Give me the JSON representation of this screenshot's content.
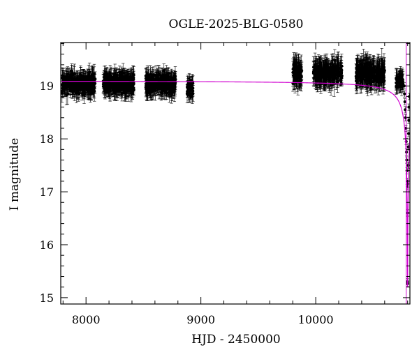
{
  "chart_data": {
    "type": "scatter",
    "title": "OGLE-2025-BLG-0580",
    "xlabel": "HJD - 2450000",
    "ylabel": "I magnitude",
    "xlim": [
      7780,
      10820
    ],
    "ylim": [
      19.82,
      14.88
    ],
    "y_inverted": true,
    "x_ticks": [
      8000,
      9000,
      10000
    ],
    "y_ticks": [
      15,
      16,
      17,
      18,
      19
    ],
    "grid": false,
    "legend": "none",
    "colors": {
      "data": "#000000",
      "model": "#d000d0"
    },
    "series": [
      {
        "kind": "points-with-errorbars",
        "seasons": [
          {
            "x_range": [
              7790,
              8080
            ],
            "y_center": 19.05,
            "y_spread": 0.32,
            "err": 0.15,
            "n": 320
          },
          {
            "x_range": [
              8150,
              8420
            ],
            "y_center": 19.05,
            "y_spread": 0.3,
            "err": 0.15,
            "n": 320
          },
          {
            "x_range": [
              8520,
              8780
            ],
            "y_center": 19.05,
            "y_spread": 0.3,
            "err": 0.15,
            "n": 300
          },
          {
            "x_range": [
              8880,
              8935
            ],
            "y_center": 18.95,
            "y_spread": 0.22,
            "err": 0.15,
            "n": 50
          },
          {
            "x_range": [
              9800,
              9880
            ],
            "y_center": 19.25,
            "y_spread": 0.3,
            "err": 0.2,
            "n": 80
          },
          {
            "x_range": [
              9980,
              10230
            ],
            "y_center": 19.25,
            "y_spread": 0.28,
            "err": 0.2,
            "n": 220
          },
          {
            "x_range": [
              10350,
              10600
            ],
            "y_center": 19.25,
            "y_spread": 0.3,
            "err": 0.2,
            "n": 240
          },
          {
            "x_range": [
              10700,
              10760
            ],
            "y_center": 19.1,
            "y_spread": 0.2,
            "err": 0.15,
            "n": 50
          }
        ],
        "event_points": [
          [
            10770,
            19.0
          ],
          [
            10773,
            18.85
          ],
          [
            10776,
            18.7
          ],
          [
            10779,
            18.55
          ],
          [
            10782,
            18.4
          ],
          [
            10785,
            18.2
          ],
          [
            10788,
            17.95
          ],
          [
            10790,
            17.75
          ],
          [
            10792,
            17.6
          ],
          [
            10794,
            17.4
          ],
          [
            10796,
            17.2
          ],
          [
            10797,
            17.1
          ],
          [
            10798,
            16.6
          ],
          [
            10799,
            15.3
          ],
          [
            10800,
            15.27
          ],
          [
            10801,
            16.6
          ],
          [
            10802,
            17.15
          ],
          [
            10804,
            17.5
          ],
          [
            10806,
            17.85
          ],
          [
            10808,
            18.1
          ],
          [
            10810,
            18.35
          ],
          [
            10812,
            18.6
          ],
          [
            10815,
            18.8
          ]
        ]
      },
      {
        "kind": "model-line",
        "baseline_mag": 19.1,
        "peak_x": 10800,
        "peak_mag": 15.2,
        "tE_days": 6
      }
    ]
  }
}
